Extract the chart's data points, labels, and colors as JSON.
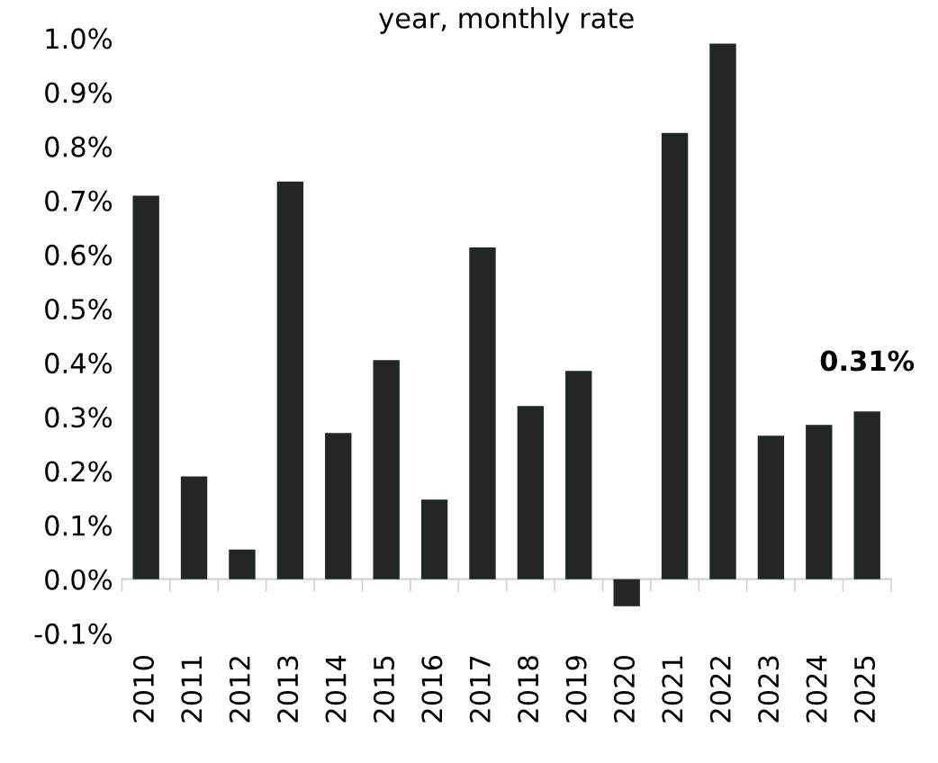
{
  "chart_data": {
    "type": "bar",
    "title": "year, monthly rate",
    "categories": [
      "2010",
      "2011",
      "2012",
      "2013",
      "2014",
      "2015",
      "2016",
      "2017",
      "2018",
      "2019",
      "2020",
      "2021",
      "2022",
      "2023",
      "2024",
      "2025"
    ],
    "values": [
      0.709,
      0.19,
      0.055,
      0.735,
      0.27,
      0.405,
      0.147,
      0.613,
      0.32,
      0.385,
      -0.05,
      0.825,
      0.99,
      0.265,
      0.285,
      0.31
    ],
    "value_labels": [
      null,
      null,
      null,
      null,
      null,
      null,
      null,
      null,
      null,
      null,
      null,
      null,
      null,
      null,
      null,
      "0.31%"
    ],
    "color": "#222726",
    "ylim": [
      -0.1,
      1.0
    ],
    "yticks": [
      {
        "value": -0.1,
        "label": "-0.1%"
      },
      {
        "value": 0.0,
        "label": "0.0%"
      },
      {
        "value": 0.1,
        "label": "0.1%"
      },
      {
        "value": 0.2,
        "label": "0.2%"
      },
      {
        "value": 0.3,
        "label": "0.3%"
      },
      {
        "value": 0.4,
        "label": "0.4%"
      },
      {
        "value": 0.5,
        "label": "0.5%"
      },
      {
        "value": 0.6,
        "label": "0.6%"
      },
      {
        "value": 0.7,
        "label": "0.7%"
      },
      {
        "value": 0.8,
        "label": "0.8%"
      },
      {
        "value": 0.9,
        "label": "0.9%"
      },
      {
        "value": 1.0,
        "label": "1.0%"
      }
    ],
    "legend": false
  }
}
